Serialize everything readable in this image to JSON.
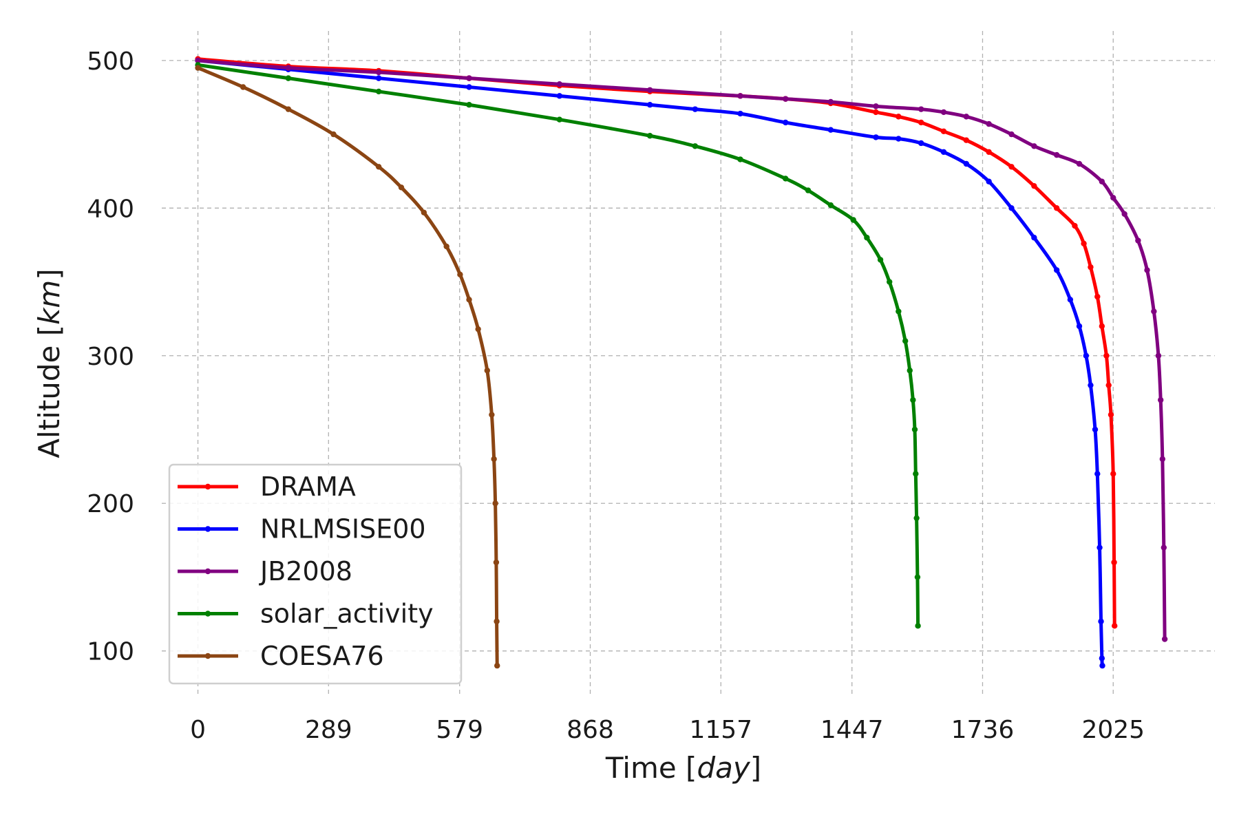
{
  "chart_data": {
    "type": "line",
    "title": "",
    "xlabel_prefix": "Time [",
    "xlabel_unit": "day",
    "xlabel_suffix": "]",
    "ylabel_prefix": "Altitude [",
    "ylabel_unit": "km",
    "ylabel_suffix": "]",
    "xlim": [
      -80,
      2250
    ],
    "ylim": [
      70,
      520
    ],
    "xticks": [
      0,
      289,
      579,
      868,
      1157,
      1447,
      1736,
      2025
    ],
    "yticks": [
      100,
      200,
      300,
      400,
      500
    ],
    "grid": true,
    "legend_position": "lower-left",
    "series": [
      {
        "name": "DRAMA",
        "color": "#ff0000",
        "x": [
          0,
          200,
          400,
          600,
          800,
          1000,
          1200,
          1300,
          1400,
          1500,
          1550,
          1600,
          1650,
          1700,
          1750,
          1800,
          1850,
          1900,
          1940,
          1960,
          1975,
          1990,
          2000,
          2010,
          2015,
          2020,
          2025,
          2027,
          2028
        ],
        "y": [
          501,
          496,
          493,
          488,
          483,
          479,
          476,
          474,
          471,
          465,
          462,
          458,
          452,
          446,
          438,
          428,
          415,
          400,
          388,
          376,
          360,
          340,
          320,
          300,
          280,
          260,
          220,
          160,
          117
        ]
      },
      {
        "name": "NRLMSISE00",
        "color": "#0000ff",
        "x": [
          0,
          200,
          400,
          600,
          800,
          1000,
          1100,
          1200,
          1300,
          1400,
          1500,
          1550,
          1600,
          1650,
          1700,
          1750,
          1800,
          1850,
          1900,
          1930,
          1950,
          1965,
          1975,
          1985,
          1990,
          1995,
          1998,
          2000,
          2001
        ],
        "y": [
          500,
          494,
          488,
          482,
          476,
          470,
          467,
          464,
          458,
          453,
          448,
          447,
          444,
          438,
          430,
          418,
          400,
          380,
          358,
          338,
          320,
          300,
          280,
          250,
          220,
          170,
          120,
          95,
          90
        ]
      },
      {
        "name": "JB2008",
        "color": "#800080",
        "x": [
          0,
          200,
          400,
          600,
          800,
          1000,
          1200,
          1300,
          1400,
          1500,
          1600,
          1650,
          1700,
          1750,
          1800,
          1850,
          1900,
          1950,
          2000,
          2025,
          2050,
          2080,
          2100,
          2115,
          2125,
          2130,
          2134,
          2137,
          2139
        ],
        "y": [
          500,
          495,
          492,
          488,
          484,
          480,
          476,
          474,
          472,
          469,
          467,
          465,
          462,
          457,
          450,
          442,
          436,
          430,
          418,
          407,
          396,
          378,
          358,
          330,
          300,
          270,
          230,
          170,
          108
        ]
      },
      {
        "name": "solar_activity",
        "color": "#008000",
        "x": [
          0,
          200,
          400,
          600,
          800,
          1000,
          1100,
          1200,
          1300,
          1350,
          1400,
          1450,
          1480,
          1510,
          1530,
          1550,
          1565,
          1575,
          1582,
          1586,
          1588,
          1590,
          1592,
          1593
        ],
        "y": [
          497,
          488,
          479,
          470,
          460,
          449,
          442,
          433,
          420,
          412,
          402,
          392,
          380,
          365,
          350,
          330,
          310,
          290,
          270,
          250,
          220,
          190,
          150,
          117
        ]
      },
      {
        "name": "COESA76",
        "color": "#8b4513",
        "x": [
          0,
          100,
          200,
          300,
          400,
          450,
          500,
          550,
          580,
          600,
          620,
          640,
          650,
          655,
          658,
          660,
          661,
          662
        ],
        "y": [
          495,
          482,
          467,
          450,
          428,
          414,
          397,
          374,
          355,
          338,
          318,
          290,
          260,
          230,
          200,
          160,
          120,
          90
        ]
      }
    ]
  }
}
